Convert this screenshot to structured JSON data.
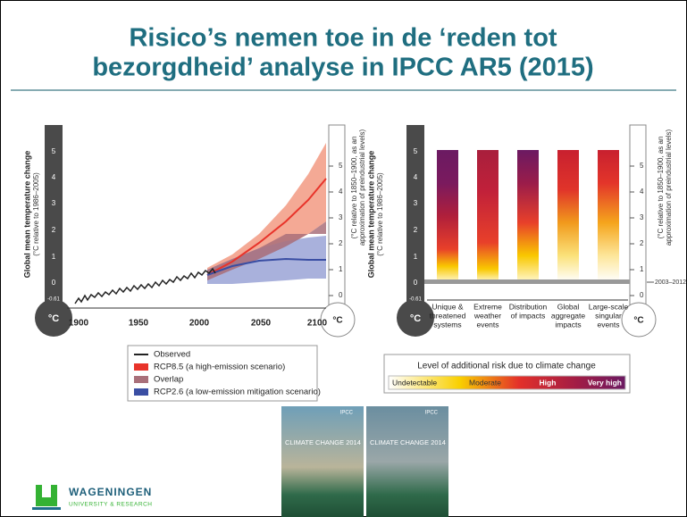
{
  "title_lines": [
    "Risico’s nemen toe in de ‘reden tot",
    "bezorgdheid’ analyse in IPCC AR5 (2015)"
  ],
  "left_figure": {
    "y_axis_title": "Global mean temperature change",
    "y_axis_subtitle": "(°C relative to 1986–2005)",
    "left_ticks": [
      "5",
      "4",
      "3",
      "2",
      "1",
      "0",
      "-0.61"
    ],
    "unit": "°C",
    "x_ticks": [
      "1900",
      "1950",
      "2000",
      "2050",
      "2100"
    ],
    "right_axis_title": "(°C relative to 1850–1900, as an",
    "right_axis_subtitle": "approximation of preindustrial levels)",
    "right_ticks": [
      "5",
      "4",
      "3",
      "2",
      "1",
      "0"
    ],
    "legend": [
      {
        "label": "Observed",
        "color": "#222222"
      },
      {
        "label": "RCP8.5 (a high-emission scenario)",
        "color": "#e8332a"
      },
      {
        "label": "Overlap",
        "color": "#a9707a"
      },
      {
        "label": "RCP2.6 (a low-emission mitigation scenario)",
        "color": "#3a4ea3"
      }
    ]
  },
  "right_figure": {
    "y_axis_title": "Global mean temperature change",
    "y_axis_subtitle": "(°C relative to 1986–2005)",
    "left_ticks": [
      "5",
      "4",
      "3",
      "2",
      "1",
      "0",
      "-0.61"
    ],
    "unit": "°C",
    "right_axis_title": "(°C relative to 1850–1900, as an",
    "right_axis_subtitle": "approximation of preindustrial levels)",
    "right_ticks": [
      "5",
      "4",
      "3",
      "2",
      "1",
      "0"
    ],
    "baseline_label": "2003–2012",
    "categories": [
      [
        "Unique &",
        "threatened",
        "systems"
      ],
      [
        "Extreme",
        "weather",
        "events"
      ],
      [
        "Distribution",
        "of impacts"
      ],
      [
        "Global",
        "aggregate",
        "impacts"
      ],
      [
        "Large-scale",
        "singular",
        "events"
      ]
    ],
    "risk_legend": {
      "title": "Level of additional risk due to climate change",
      "levels": [
        "Undetectable",
        "Moderate",
        "High",
        "Very high"
      ]
    }
  },
  "covers": {
    "title": "CLIMATE CHANGE 2014",
    "publisher": "IPCC"
  },
  "logo": {
    "name": "WAGENINGEN",
    "subtitle": "UNIVERSITY & RESEARCH"
  }
}
